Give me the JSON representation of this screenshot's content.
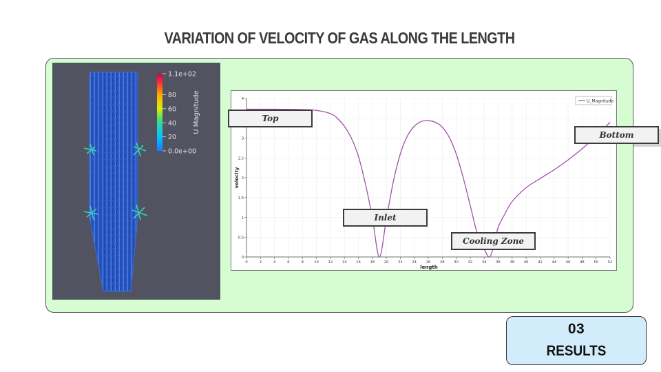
{
  "slide": {
    "title": "VARIATION OF VELOCITY OF GAS ALONG THE LENGTH",
    "section_number": "03",
    "section_label": "RESULTS",
    "panel_color": "#d6fcd2",
    "badge_color": "#d2ecfb"
  },
  "contour": {
    "colorbar_title": "U Magnitude",
    "colorbar_ticks": [
      "1.1e+02",
      "80",
      "60",
      "40",
      "20",
      "0.0e+00"
    ],
    "colorbar_tick_values": [
      110,
      80,
      60,
      40,
      20,
      0
    ],
    "colormap": [
      "#3b4cc0",
      "#1f78ff",
      "#00c8ff",
      "#3fe07a",
      "#d8f000",
      "#ffb000",
      "#ff3030",
      "#c8003a"
    ],
    "background_color": "#525361"
  },
  "callouts": {
    "top": "Top",
    "inlet": "Inlet",
    "cooling_zone": "Cooling Zone",
    "bottom": "Bottom"
  },
  "chart_data": {
    "type": "line",
    "xlabel": "length",
    "ylabel": "velocity",
    "xlim": [
      0,
      52
    ],
    "ylim": [
      0,
      4
    ],
    "x_ticks": [
      0,
      2,
      4,
      6,
      8,
      10,
      12,
      14,
      16,
      18,
      20,
      22,
      24,
      26,
      28,
      30,
      32,
      34,
      36,
      38,
      40,
      42,
      44,
      46,
      48,
      50,
      52
    ],
    "y_ticks": [
      "0",
      "0.5",
      "1",
      "1.5",
      "2",
      "2.5",
      "3",
      "3.5",
      "4"
    ],
    "grid": true,
    "legend_position": "top-right",
    "series": [
      {
        "name": "U_Magnitude",
        "color": "#a050a8",
        "x": [
          0,
          4,
          8,
          10,
          12,
          13,
          14,
          15,
          16,
          17,
          18,
          19,
          20,
          21,
          22,
          23,
          24,
          25,
          26,
          27,
          28,
          29,
          30,
          31,
          32,
          33,
          34,
          34.8,
          35.5,
          36,
          37,
          38,
          40,
          42,
          44,
          46,
          48,
          50,
          52
        ],
        "y": [
          3.73,
          3.73,
          3.72,
          3.7,
          3.62,
          3.5,
          3.3,
          3.0,
          2.55,
          1.85,
          1.0,
          0.0,
          0.95,
          1.9,
          2.6,
          3.05,
          3.3,
          3.42,
          3.44,
          3.4,
          3.28,
          3.02,
          2.6,
          2.0,
          1.3,
          0.6,
          0.2,
          0.0,
          0.38,
          0.75,
          1.1,
          1.4,
          1.75,
          1.98,
          2.2,
          2.45,
          2.73,
          3.05,
          3.4
        ]
      }
    ]
  }
}
